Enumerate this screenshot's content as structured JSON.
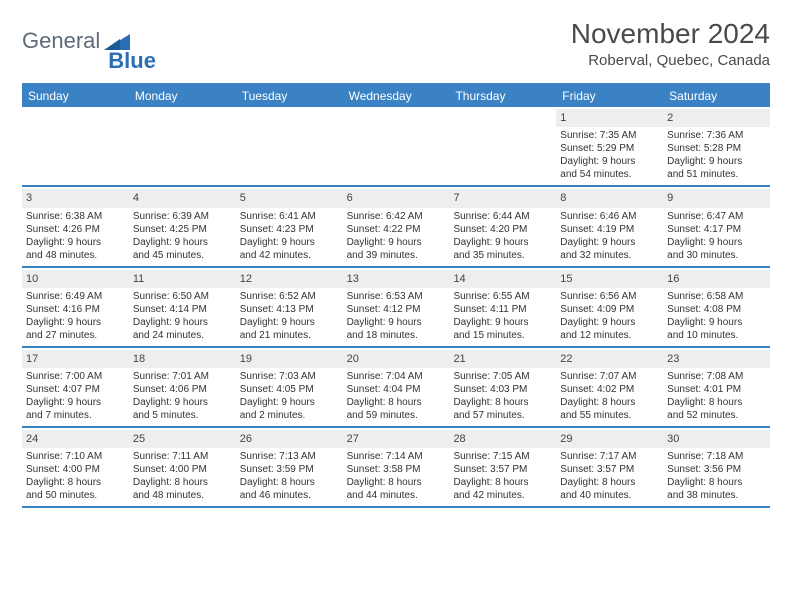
{
  "logo": {
    "text1": "General",
    "text2": "Blue",
    "mark_color": "#2a6fb5"
  },
  "title": "November 2024",
  "location": "Roberval, Quebec, Canada",
  "colors": {
    "header_bg": "#3b82c4",
    "daynum_bg": "#eceef0",
    "text": "#333333",
    "rule": "#3b82c4"
  },
  "day_names": [
    "Sunday",
    "Monday",
    "Tuesday",
    "Wednesday",
    "Thursday",
    "Friday",
    "Saturday"
  ],
  "weeks": [
    [
      null,
      null,
      null,
      null,
      null,
      {
        "n": "1",
        "sunrise": "Sunrise: 7:35 AM",
        "sunset": "Sunset: 5:29 PM",
        "d1": "Daylight: 9 hours",
        "d2": "and 54 minutes."
      },
      {
        "n": "2",
        "sunrise": "Sunrise: 7:36 AM",
        "sunset": "Sunset: 5:28 PM",
        "d1": "Daylight: 9 hours",
        "d2": "and 51 minutes."
      }
    ],
    [
      {
        "n": "3",
        "sunrise": "Sunrise: 6:38 AM",
        "sunset": "Sunset: 4:26 PM",
        "d1": "Daylight: 9 hours",
        "d2": "and 48 minutes."
      },
      {
        "n": "4",
        "sunrise": "Sunrise: 6:39 AM",
        "sunset": "Sunset: 4:25 PM",
        "d1": "Daylight: 9 hours",
        "d2": "and 45 minutes."
      },
      {
        "n": "5",
        "sunrise": "Sunrise: 6:41 AM",
        "sunset": "Sunset: 4:23 PM",
        "d1": "Daylight: 9 hours",
        "d2": "and 42 minutes."
      },
      {
        "n": "6",
        "sunrise": "Sunrise: 6:42 AM",
        "sunset": "Sunset: 4:22 PM",
        "d1": "Daylight: 9 hours",
        "d2": "and 39 minutes."
      },
      {
        "n": "7",
        "sunrise": "Sunrise: 6:44 AM",
        "sunset": "Sunset: 4:20 PM",
        "d1": "Daylight: 9 hours",
        "d2": "and 35 minutes."
      },
      {
        "n": "8",
        "sunrise": "Sunrise: 6:46 AM",
        "sunset": "Sunset: 4:19 PM",
        "d1": "Daylight: 9 hours",
        "d2": "and 32 minutes."
      },
      {
        "n": "9",
        "sunrise": "Sunrise: 6:47 AM",
        "sunset": "Sunset: 4:17 PM",
        "d1": "Daylight: 9 hours",
        "d2": "and 30 minutes."
      }
    ],
    [
      {
        "n": "10",
        "sunrise": "Sunrise: 6:49 AM",
        "sunset": "Sunset: 4:16 PM",
        "d1": "Daylight: 9 hours",
        "d2": "and 27 minutes."
      },
      {
        "n": "11",
        "sunrise": "Sunrise: 6:50 AM",
        "sunset": "Sunset: 4:14 PM",
        "d1": "Daylight: 9 hours",
        "d2": "and 24 minutes."
      },
      {
        "n": "12",
        "sunrise": "Sunrise: 6:52 AM",
        "sunset": "Sunset: 4:13 PM",
        "d1": "Daylight: 9 hours",
        "d2": "and 21 minutes."
      },
      {
        "n": "13",
        "sunrise": "Sunrise: 6:53 AM",
        "sunset": "Sunset: 4:12 PM",
        "d1": "Daylight: 9 hours",
        "d2": "and 18 minutes."
      },
      {
        "n": "14",
        "sunrise": "Sunrise: 6:55 AM",
        "sunset": "Sunset: 4:11 PM",
        "d1": "Daylight: 9 hours",
        "d2": "and 15 minutes."
      },
      {
        "n": "15",
        "sunrise": "Sunrise: 6:56 AM",
        "sunset": "Sunset: 4:09 PM",
        "d1": "Daylight: 9 hours",
        "d2": "and 12 minutes."
      },
      {
        "n": "16",
        "sunrise": "Sunrise: 6:58 AM",
        "sunset": "Sunset: 4:08 PM",
        "d1": "Daylight: 9 hours",
        "d2": "and 10 minutes."
      }
    ],
    [
      {
        "n": "17",
        "sunrise": "Sunrise: 7:00 AM",
        "sunset": "Sunset: 4:07 PM",
        "d1": "Daylight: 9 hours",
        "d2": "and 7 minutes."
      },
      {
        "n": "18",
        "sunrise": "Sunrise: 7:01 AM",
        "sunset": "Sunset: 4:06 PM",
        "d1": "Daylight: 9 hours",
        "d2": "and 5 minutes."
      },
      {
        "n": "19",
        "sunrise": "Sunrise: 7:03 AM",
        "sunset": "Sunset: 4:05 PM",
        "d1": "Daylight: 9 hours",
        "d2": "and 2 minutes."
      },
      {
        "n": "20",
        "sunrise": "Sunrise: 7:04 AM",
        "sunset": "Sunset: 4:04 PM",
        "d1": "Daylight: 8 hours",
        "d2": "and 59 minutes."
      },
      {
        "n": "21",
        "sunrise": "Sunrise: 7:05 AM",
        "sunset": "Sunset: 4:03 PM",
        "d1": "Daylight: 8 hours",
        "d2": "and 57 minutes."
      },
      {
        "n": "22",
        "sunrise": "Sunrise: 7:07 AM",
        "sunset": "Sunset: 4:02 PM",
        "d1": "Daylight: 8 hours",
        "d2": "and 55 minutes."
      },
      {
        "n": "23",
        "sunrise": "Sunrise: 7:08 AM",
        "sunset": "Sunset: 4:01 PM",
        "d1": "Daylight: 8 hours",
        "d2": "and 52 minutes."
      }
    ],
    [
      {
        "n": "24",
        "sunrise": "Sunrise: 7:10 AM",
        "sunset": "Sunset: 4:00 PM",
        "d1": "Daylight: 8 hours",
        "d2": "and 50 minutes."
      },
      {
        "n": "25",
        "sunrise": "Sunrise: 7:11 AM",
        "sunset": "Sunset: 4:00 PM",
        "d1": "Daylight: 8 hours",
        "d2": "and 48 minutes."
      },
      {
        "n": "26",
        "sunrise": "Sunrise: 7:13 AM",
        "sunset": "Sunset: 3:59 PM",
        "d1": "Daylight: 8 hours",
        "d2": "and 46 minutes."
      },
      {
        "n": "27",
        "sunrise": "Sunrise: 7:14 AM",
        "sunset": "Sunset: 3:58 PM",
        "d1": "Daylight: 8 hours",
        "d2": "and 44 minutes."
      },
      {
        "n": "28",
        "sunrise": "Sunrise: 7:15 AM",
        "sunset": "Sunset: 3:57 PM",
        "d1": "Daylight: 8 hours",
        "d2": "and 42 minutes."
      },
      {
        "n": "29",
        "sunrise": "Sunrise: 7:17 AM",
        "sunset": "Sunset: 3:57 PM",
        "d1": "Daylight: 8 hours",
        "d2": "and 40 minutes."
      },
      {
        "n": "30",
        "sunrise": "Sunrise: 7:18 AM",
        "sunset": "Sunset: 3:56 PM",
        "d1": "Daylight: 8 hours",
        "d2": "and 38 minutes."
      }
    ]
  ]
}
